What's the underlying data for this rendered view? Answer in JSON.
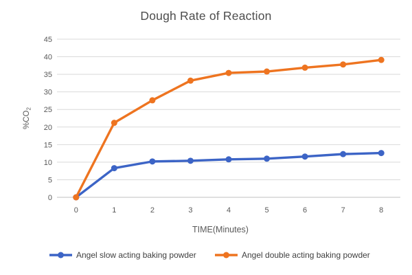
{
  "chart_data": {
    "type": "line",
    "title": "Dough Rate of Reaction",
    "xlabel": "TIME(Minutes)",
    "ylabel": "%CO",
    "ylabel_subscript": "2",
    "categories": [
      "0",
      "1",
      "2",
      "3",
      "4",
      "5",
      "6",
      "7",
      "8"
    ],
    "series": [
      {
        "name": "Angel slow acting baking powder",
        "color": "#3C64C6",
        "values": [
          0,
          8.3,
          10.2,
          10.4,
          10.8,
          11.0,
          11.6,
          12.3,
          12.6
        ]
      },
      {
        "name": "Angel double acting baking powder",
        "color": "#EE7420",
        "values": [
          0,
          21.2,
          27.6,
          33.2,
          35.4,
          35.8,
          36.9,
          37.8,
          39.1
        ]
      }
    ],
    "ylim": [
      0,
      45
    ],
    "ytick_step": 5,
    "yticks": [
      0,
      5,
      10,
      15,
      20,
      25,
      30,
      35,
      40,
      45
    ],
    "grid": "horizontal",
    "legend_position": "bottom",
    "colors": {
      "background": "#FFFFFF",
      "gridline": "#D9D9D9",
      "axis_line": "#BFBFBF",
      "tick_label": "#595959",
      "title": "#4D4D4D",
      "legend_text": "#404040"
    }
  }
}
